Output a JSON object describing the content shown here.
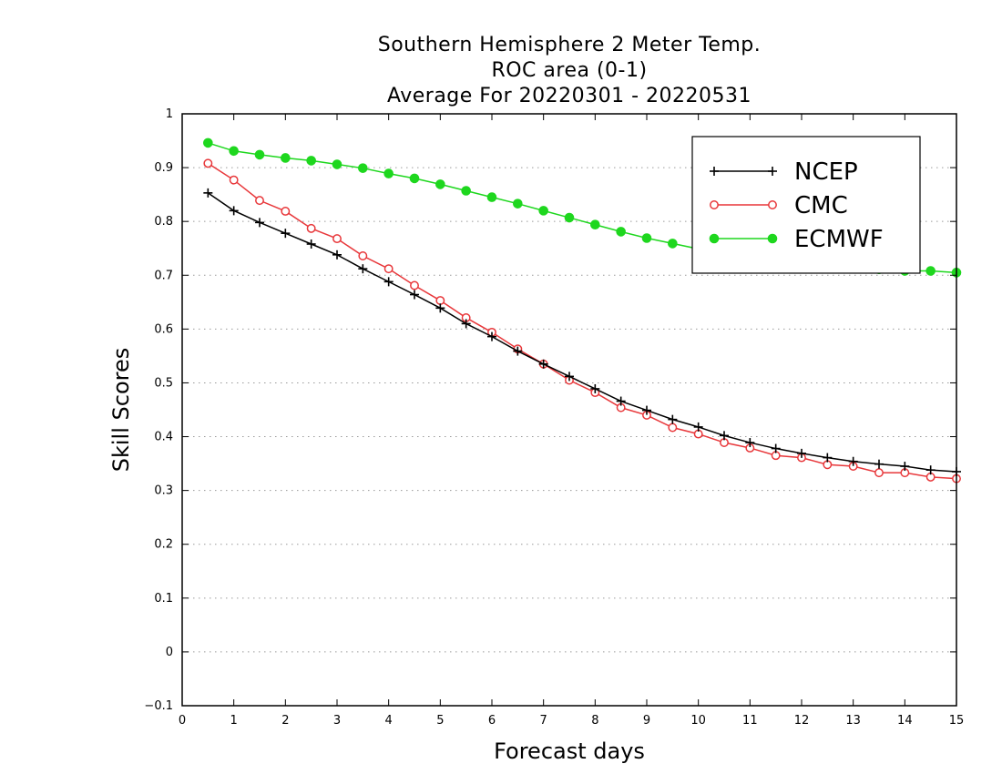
{
  "chart_data": {
    "type": "line",
    "title_lines": [
      "Southern Hemisphere 2 Meter Temp.",
      "ROC area (0-1)",
      "Average For 20220301 - 20220531"
    ],
    "xlabel": "Forecast days",
    "ylabel": "Skill Scores",
    "xlim": [
      0,
      15
    ],
    "ylim": [
      -0.1,
      1
    ],
    "x_ticks": [
      0,
      1,
      2,
      3,
      4,
      5,
      6,
      7,
      8,
      9,
      10,
      11,
      12,
      13,
      14,
      15
    ],
    "x_tick_labels": [
      "0",
      "1",
      "2",
      "3",
      "4",
      "5",
      "6",
      "7",
      "8",
      "9",
      "10",
      "11",
      "12",
      "13",
      "14",
      "15"
    ],
    "y_ticks": [
      -0.1,
      0,
      0.1,
      0.2,
      0.3,
      0.4,
      0.5,
      0.6,
      0.7,
      0.8,
      0.9,
      1
    ],
    "y_tick_labels": [
      "−0.1",
      "0",
      "0.1",
      "0.2",
      "0.3",
      "0.4",
      "0.5",
      "0.6",
      "0.7",
      "0.8",
      "0.9",
      "1"
    ],
    "grid": "horizontal dotted",
    "legend_position": "top-right",
    "x": [
      0.5,
      1,
      1.5,
      2,
      2.5,
      3,
      3.5,
      4,
      4.5,
      5,
      5.5,
      6,
      6.5,
      7,
      7.5,
      8,
      8.5,
      9,
      9.5,
      10,
      10.5,
      11,
      11.5,
      12,
      12.5,
      13,
      13.5,
      14,
      14.5,
      15
    ],
    "series": [
      {
        "name": "NCEP",
        "color": "#000000",
        "marker": "plus",
        "values": [
          0.853,
          0.82,
          0.798,
          0.778,
          0.758,
          0.738,
          0.712,
          0.688,
          0.664,
          0.639,
          0.61,
          0.586,
          0.559,
          0.535,
          0.512,
          0.489,
          0.466,
          0.449,
          0.432,
          0.418,
          0.402,
          0.389,
          0.378,
          0.369,
          0.361,
          0.354,
          0.349,
          0.345,
          0.338,
          0.335
        ]
      },
      {
        "name": "CMC",
        "color": "#e8373a",
        "marker": "open-circle",
        "values": [
          0.908,
          0.877,
          0.839,
          0.819,
          0.787,
          0.768,
          0.736,
          0.712,
          0.681,
          0.653,
          0.621,
          0.594,
          0.563,
          0.535,
          0.505,
          0.482,
          0.454,
          0.44,
          0.417,
          0.405,
          0.389,
          0.379,
          0.365,
          0.361,
          0.348,
          0.345,
          0.333,
          0.333,
          0.325,
          0.322
        ]
      },
      {
        "name": "ECMWF",
        "color": "#1ed71e",
        "marker": "filled-circle",
        "values": [
          0.946,
          0.931,
          0.924,
          0.918,
          0.913,
          0.906,
          0.899,
          0.889,
          0.88,
          0.869,
          0.857,
          0.845,
          0.833,
          0.82,
          0.807,
          0.794,
          0.781,
          0.769,
          0.759,
          0.749,
          0.742,
          0.735,
          0.728,
          0.723,
          0.718,
          0.714,
          0.711,
          0.708,
          0.708,
          0.705
        ]
      }
    ]
  }
}
